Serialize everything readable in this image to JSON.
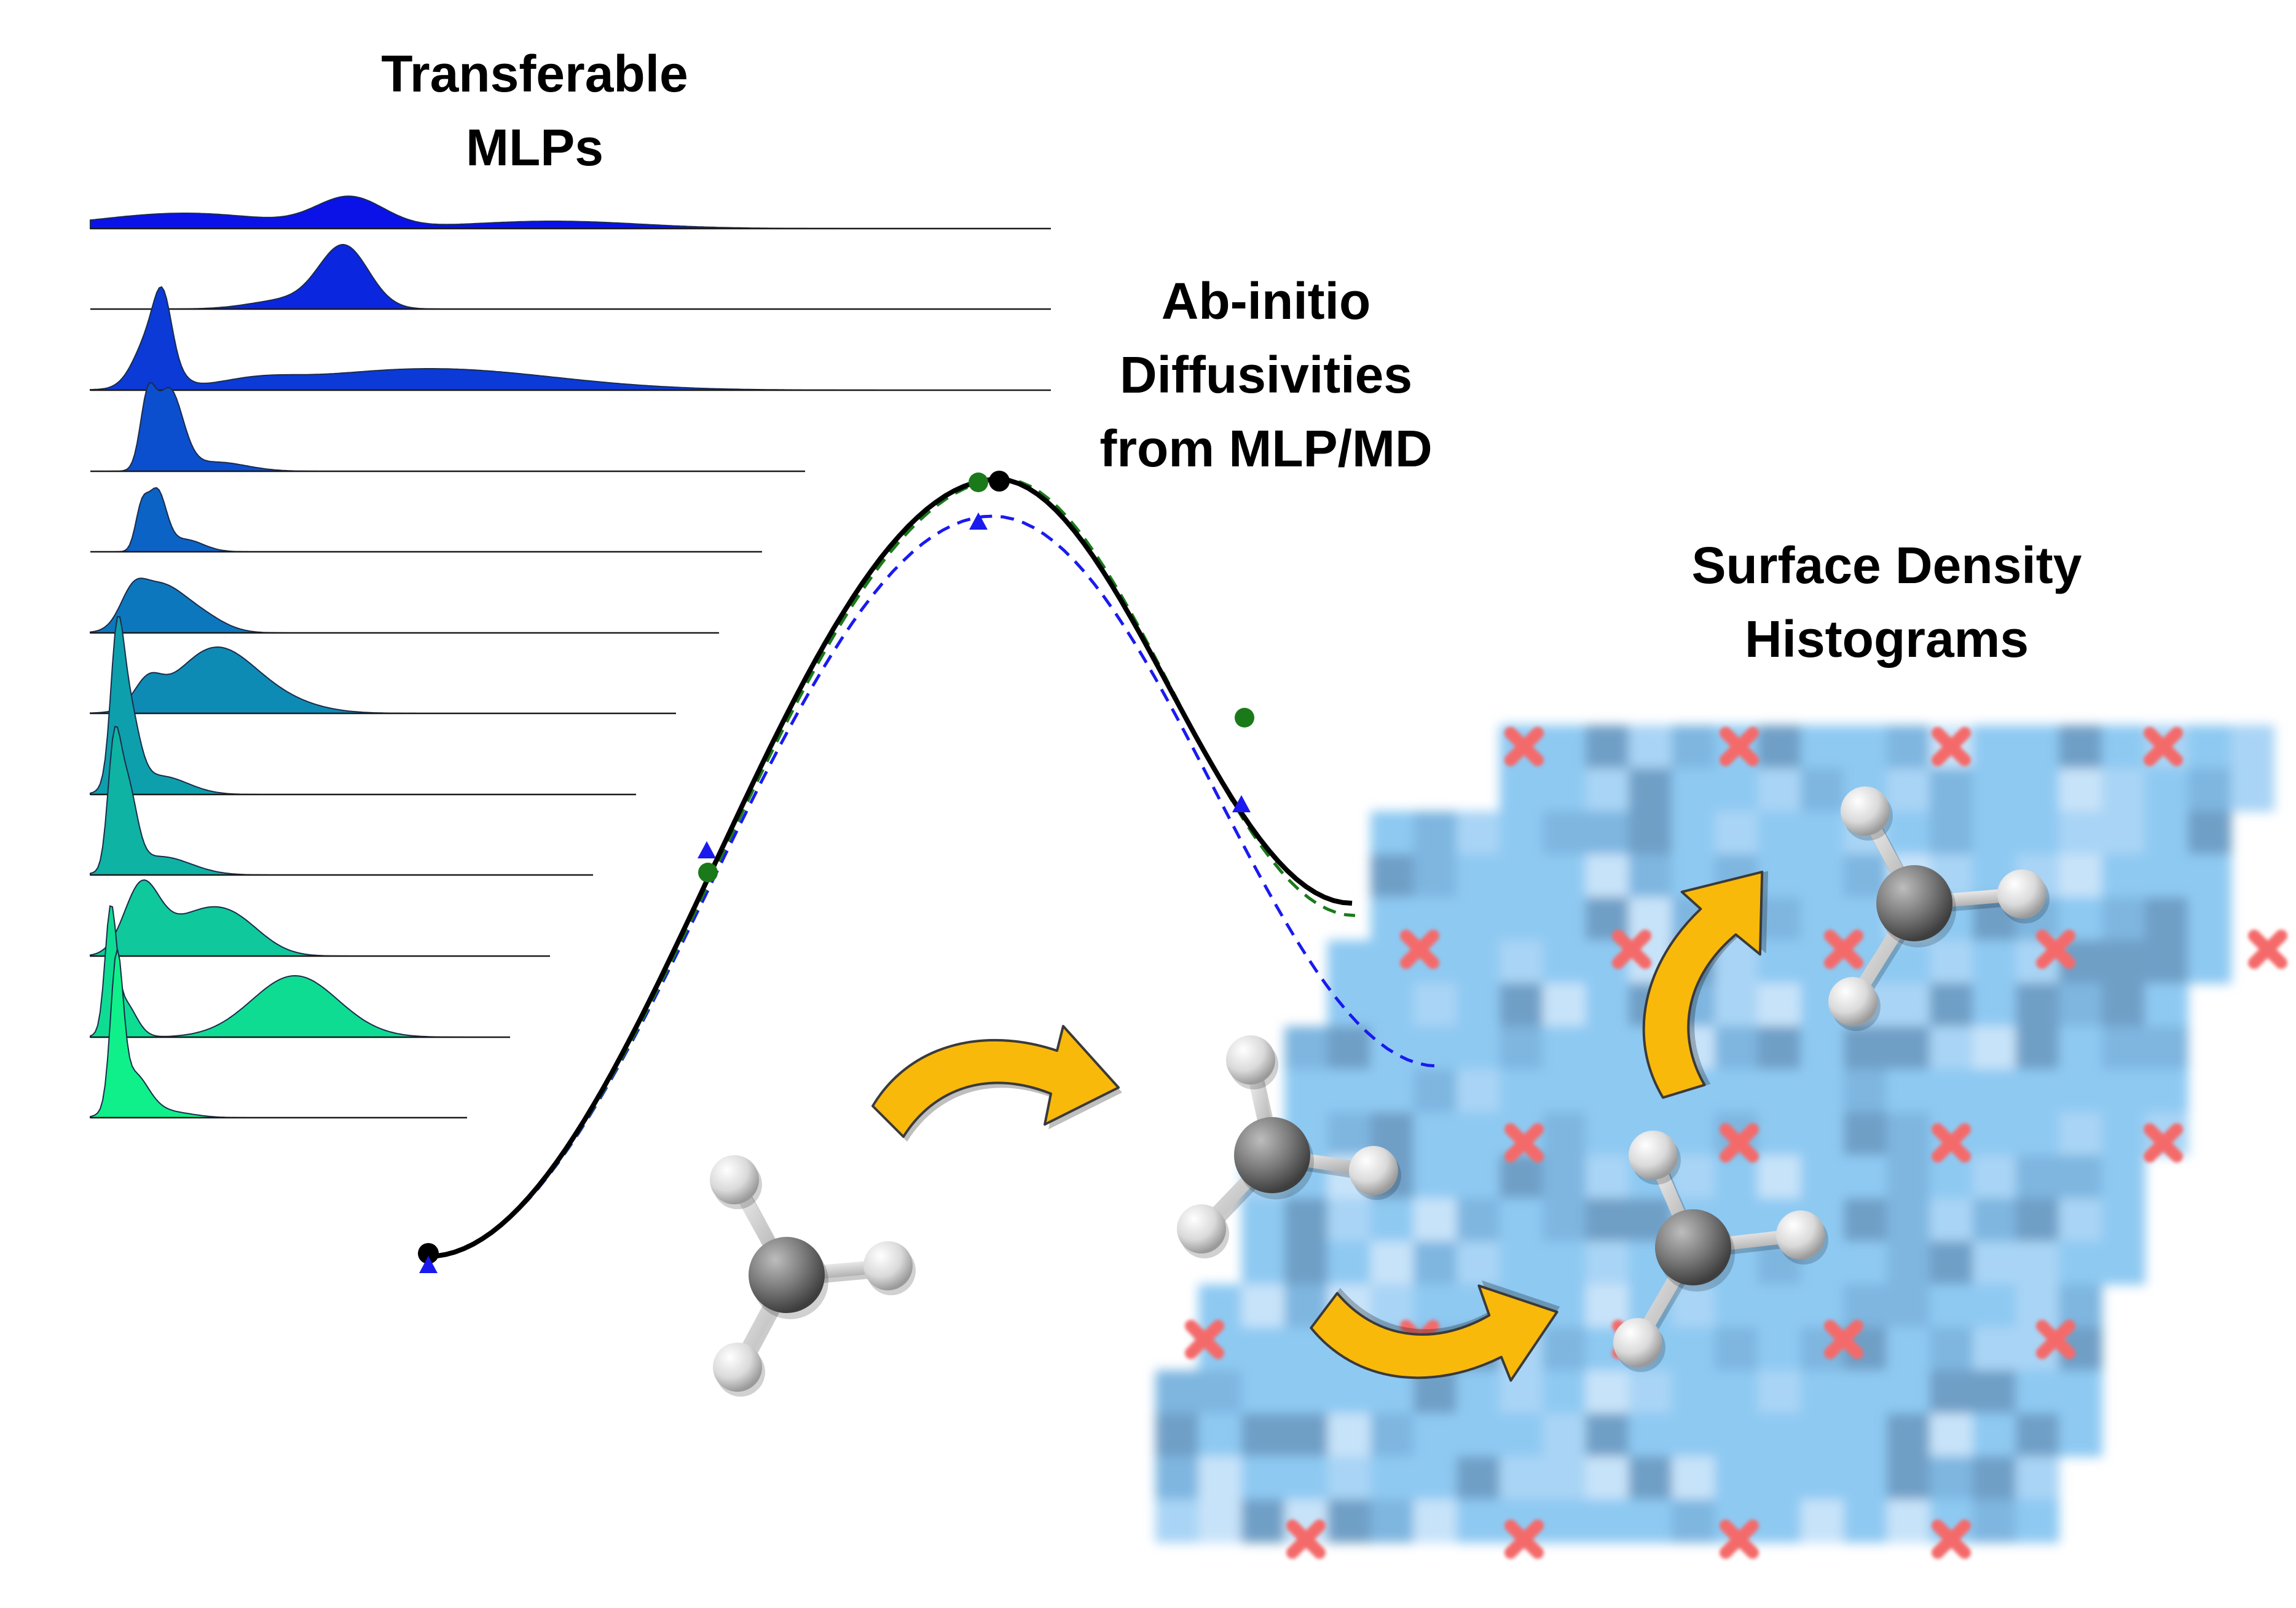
{
  "labels": {
    "mlps": {
      "line1": "Transferable",
      "line2": "MLPs"
    },
    "diffusivities": {
      "line1": "Ab-initio",
      "line2": "Diffusivities",
      "line3": "from MLP/MD"
    },
    "histograms": {
      "line1": "Surface Density",
      "line2": "Histograms"
    }
  },
  "colors": {
    "ridge_top": "#0a12e8",
    "ridge_bottom": "#10f08a",
    "curve_main": "#000000",
    "curve_green": "#1a7a1a",
    "curve_blue": "#1a1aee",
    "arrow_fill": "#f9b90a",
    "arrow_stroke": "#3a3a3a",
    "grid_base": "#8ec9f2",
    "site_marker": "#f46a6a",
    "carbon": "#6e6e6e",
    "hydrogen": "#d8d8d8"
  },
  "icons": {
    "molecule": "methane-molecule-icon",
    "hop_arrow": "curved-arrow-icon",
    "site_marker": "x-mark-icon"
  }
}
